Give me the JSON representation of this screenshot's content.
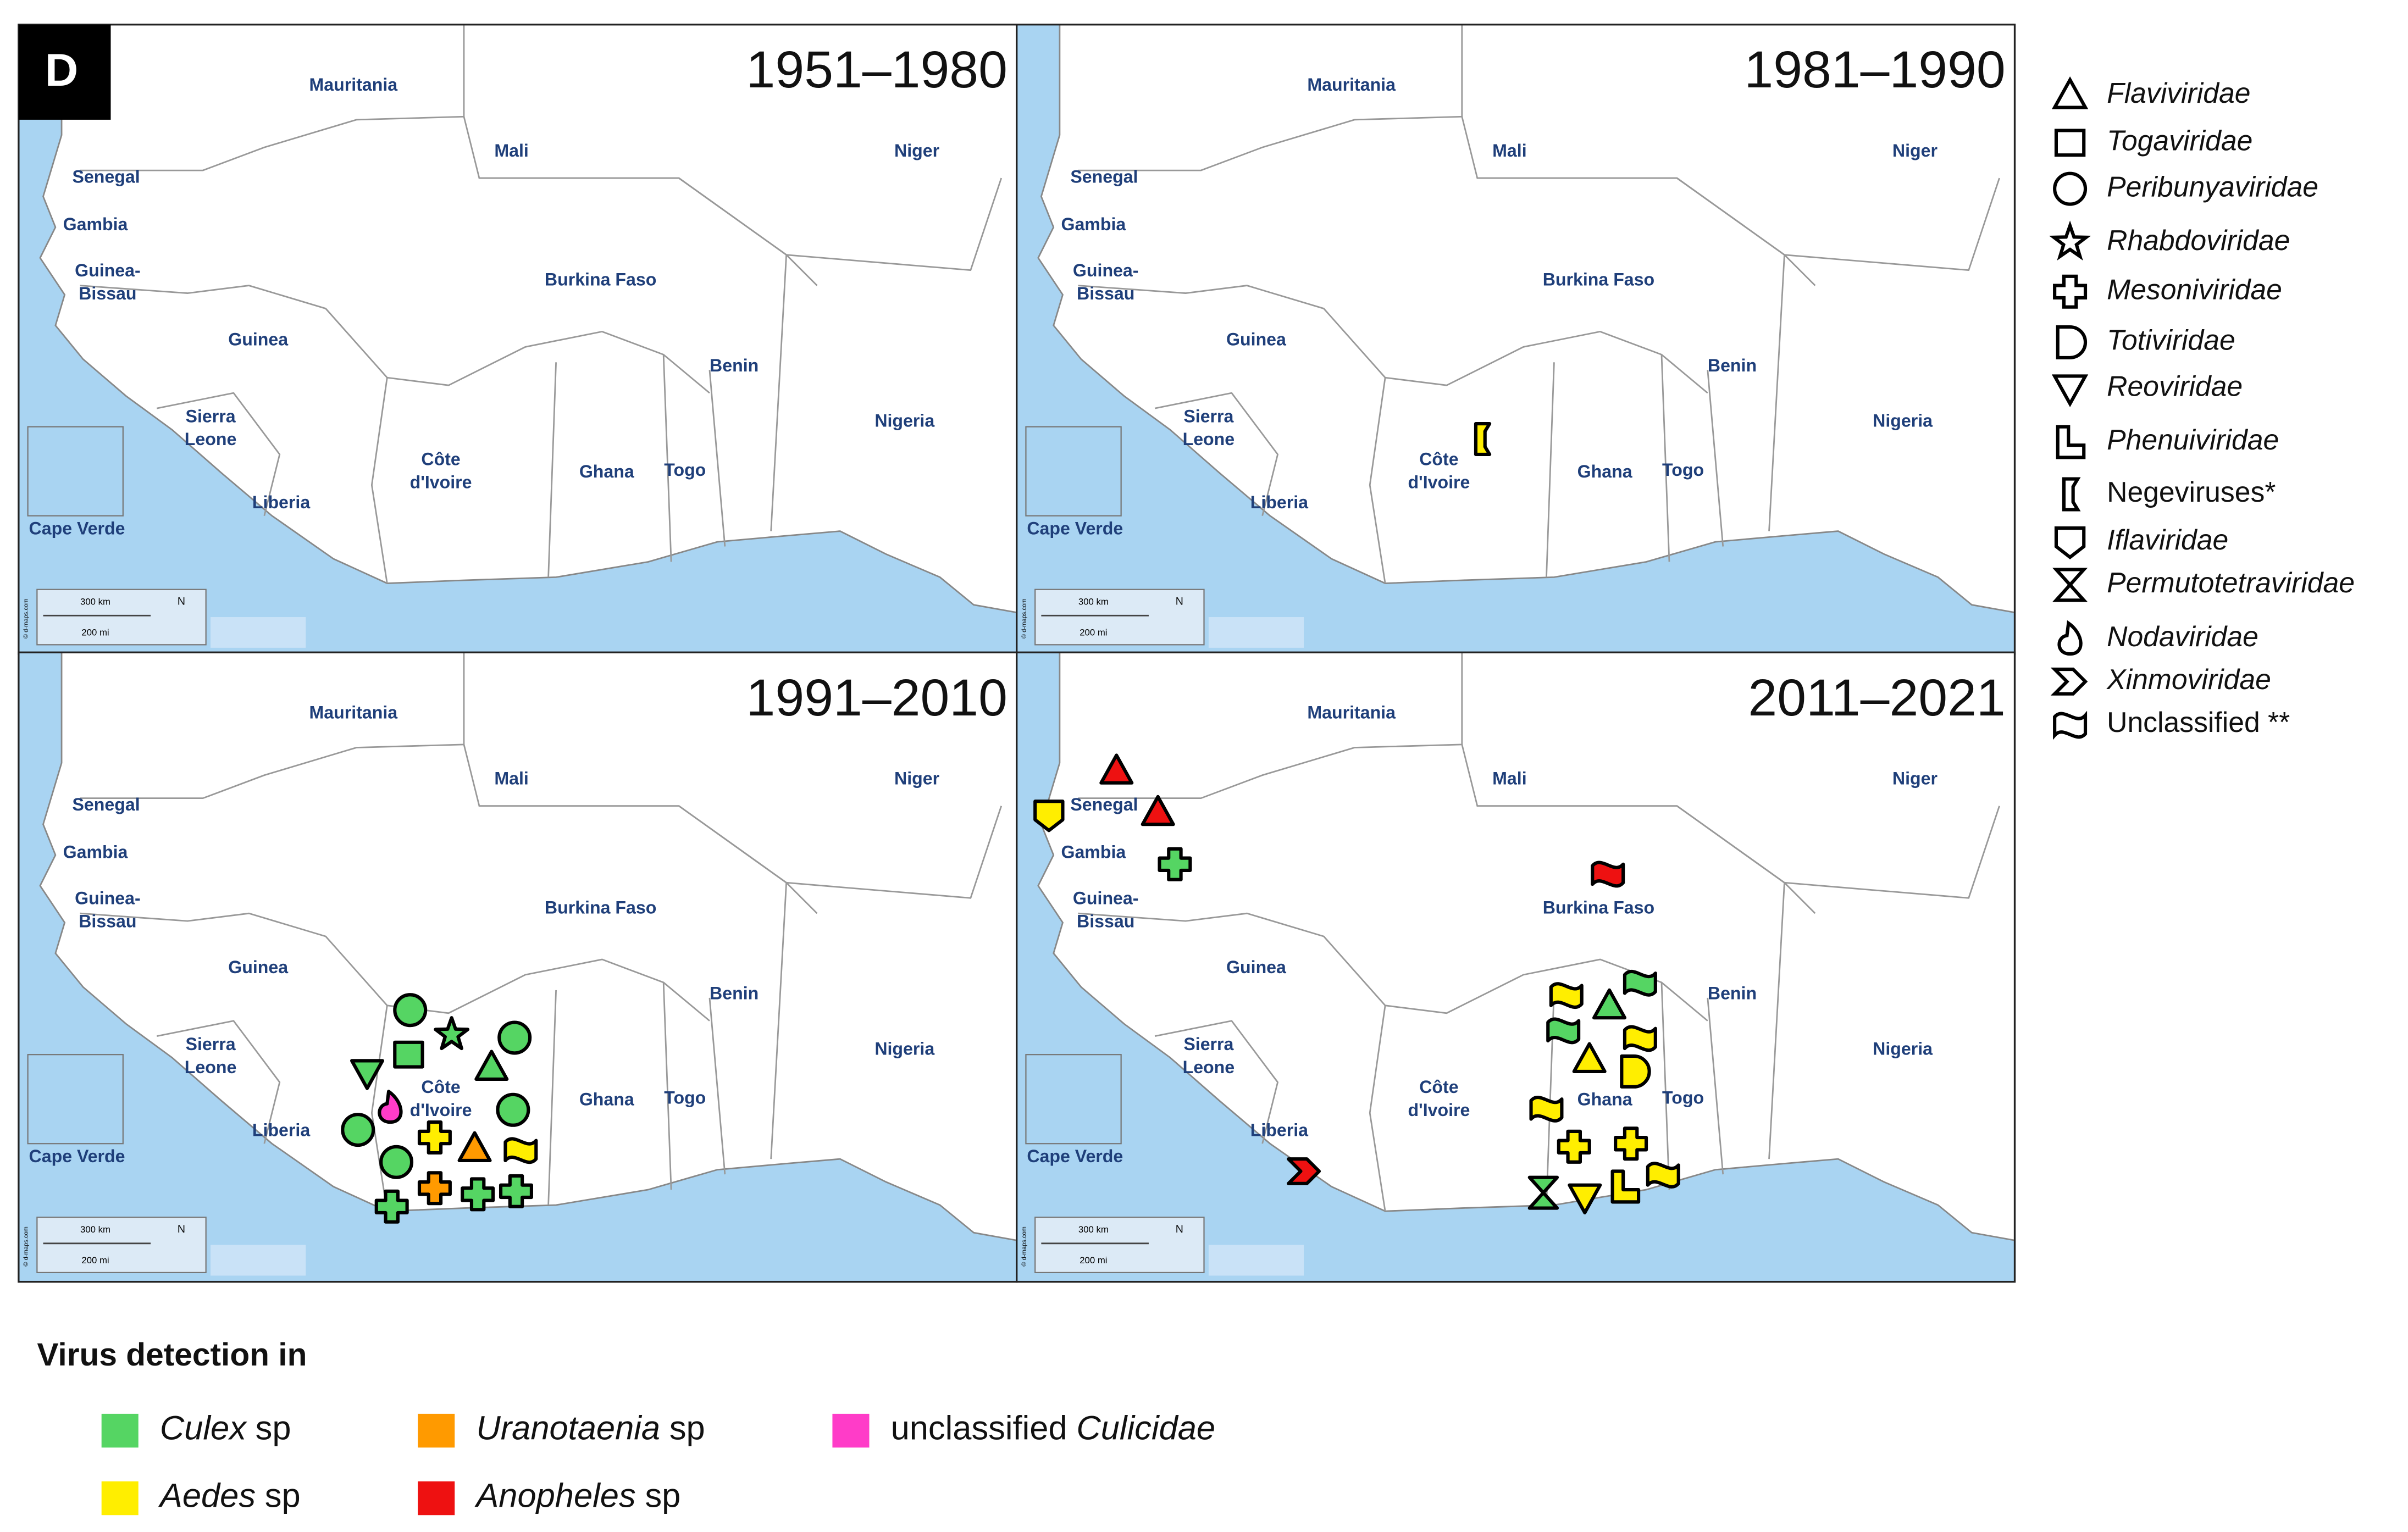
{
  "panel_label": "D",
  "countries": [
    {
      "lines": [
        "Mauritania"
      ]
    },
    {
      "lines": [
        "Mali"
      ]
    },
    {
      "lines": [
        "Niger"
      ]
    },
    {
      "lines": [
        "Senegal"
      ]
    },
    {
      "lines": [
        "Gambia"
      ]
    },
    {
      "lines": [
        "Guinea-",
        "Bissau"
      ]
    },
    {
      "lines": [
        "Burkina Faso"
      ]
    },
    {
      "lines": [
        "Guinea"
      ]
    },
    {
      "lines": [
        "Benin"
      ]
    },
    {
      "lines": [
        "Sierra",
        "Leone"
      ]
    },
    {
      "lines": [
        "Nigeria"
      ]
    },
    {
      "lines": [
        "Côte",
        "d'Ivoire"
      ]
    },
    {
      "lines": [
        "Ghana"
      ]
    },
    {
      "lines": [
        "Togo"
      ]
    },
    {
      "lines": [
        "Liberia"
      ]
    },
    {
      "lines": [
        "Cape Verde"
      ]
    }
  ],
  "scale": [
    "300 km",
    "200 mi",
    "N"
  ],
  "credit": "© d-maps.com",
  "panels": [
    {
      "period": "1951–1980",
      "markers": []
    },
    {
      "period": "1981–1990",
      "markers": [
        {
          "family": "Negeviruses*",
          "vector": "Aedes"
        }
      ]
    },
    {
      "period": "1991–2010",
      "markers": [
        {
          "family": "Peribunyaviridae",
          "vector": "Culex"
        },
        {
          "family": "Rhabdoviridae",
          "vector": "Culex"
        },
        {
          "family": "Togaviridae",
          "vector": "Culex"
        },
        {
          "family": "Peribunyaviridae",
          "vector": "Culex"
        },
        {
          "family": "Flaviviridae",
          "vector": "Culex"
        },
        {
          "family": "Reoviridae",
          "vector": "Culex"
        },
        {
          "family": "Nodaviridae",
          "vector": "Culicidae"
        },
        {
          "family": "Peribunyaviridae",
          "vector": "Culex"
        },
        {
          "family": "Peribunyaviridae",
          "vector": "Culex"
        },
        {
          "family": "Mesoniviridae",
          "vector": "Aedes"
        },
        {
          "family": "Flaviviridae",
          "vector": "Uranotaenia"
        },
        {
          "family": "Unclassified **",
          "vector": "Aedes"
        },
        {
          "family": "Peribunyaviridae",
          "vector": "Culex"
        },
        {
          "family": "Mesoniviridae",
          "vector": "Uranotaenia"
        },
        {
          "family": "Mesoniviridae",
          "vector": "Culex"
        },
        {
          "family": "Mesoniviridae",
          "vector": "Culex"
        },
        {
          "family": "Mesoniviridae",
          "vector": "Culex"
        }
      ]
    },
    {
      "period": "2011–2021",
      "markers": [
        {
          "family": "Flaviviridae",
          "vector": "Anopheles"
        },
        {
          "family": "Iflaviridae",
          "vector": "Aedes"
        },
        {
          "family": "Flaviviridae",
          "vector": "Anopheles"
        },
        {
          "family": "Mesoniviridae",
          "vector": "Culex"
        },
        {
          "family": "Unclassified **",
          "vector": "Anopheles"
        },
        {
          "family": "Unclassified **",
          "vector": "Aedes"
        },
        {
          "family": "Flaviviridae",
          "vector": "Culex"
        },
        {
          "family": "Unclassified **",
          "vector": "Culex"
        },
        {
          "family": "Unclassified **",
          "vector": "Culex"
        },
        {
          "family": "Unclassified **",
          "vector": "Aedes"
        },
        {
          "family": "Flaviviridae",
          "vector": "Aedes"
        },
        {
          "family": "Totiviridae",
          "vector": "Aedes"
        },
        {
          "family": "Unclassified **",
          "vector": "Aedes"
        },
        {
          "family": "Mesoniviridae",
          "vector": "Aedes"
        },
        {
          "family": "Mesoniviridae",
          "vector": "Aedes"
        },
        {
          "family": "Permutotetraviridae",
          "vector": "Culex"
        },
        {
          "family": "Reoviridae",
          "vector": "Aedes"
        },
        {
          "family": "Phenuiviridae",
          "vector": "Aedes"
        },
        {
          "family": "Unclassified **",
          "vector": "Aedes"
        },
        {
          "family": "Xinmoviridae",
          "vector": "Anopheles"
        }
      ]
    }
  ],
  "families": [
    {
      "name": "Flaviviridae",
      "italic": true
    },
    {
      "name": "Togaviridae",
      "italic": true
    },
    {
      "name": "Peribunyaviridae",
      "italic": true
    },
    {
      "name": "Rhabdoviridae",
      "italic": true
    },
    {
      "name": "Mesoniviridae",
      "italic": true
    },
    {
      "name": "Totiviridae",
      "italic": true
    },
    {
      "name": "Reoviridae",
      "italic": true
    },
    {
      "name": "Phenuiviridae",
      "italic": true
    },
    {
      "name": "Negeviruses*",
      "italic": false
    },
    {
      "name": "Iflaviridae",
      "italic": true
    },
    {
      "name": "Permutotetraviridae",
      "italic": true
    },
    {
      "name": "Nodaviridae",
      "italic": true
    },
    {
      "name": "Xinmoviridae",
      "italic": true
    },
    {
      "name": "Unclassified **",
      "italic": false
    }
  ],
  "vector_legend": {
    "title": "Virus detection in",
    "entries": [
      {
        "name": "Culex",
        "suffix": "sp",
        "color": "#55d563"
      },
      {
        "name": "Aedes",
        "suffix": "sp",
        "color": "#ffee00"
      },
      {
        "name": "Uranotaenia",
        "suffix": "sp",
        "color": "#ff9a00"
      },
      {
        "name": "Anopheles",
        "suffix": "sp",
        "color": "#ee1111"
      },
      {
        "prefix": "unclassified",
        "name": "Culicidae",
        "color": "#ff3cc8"
      }
    ]
  }
}
